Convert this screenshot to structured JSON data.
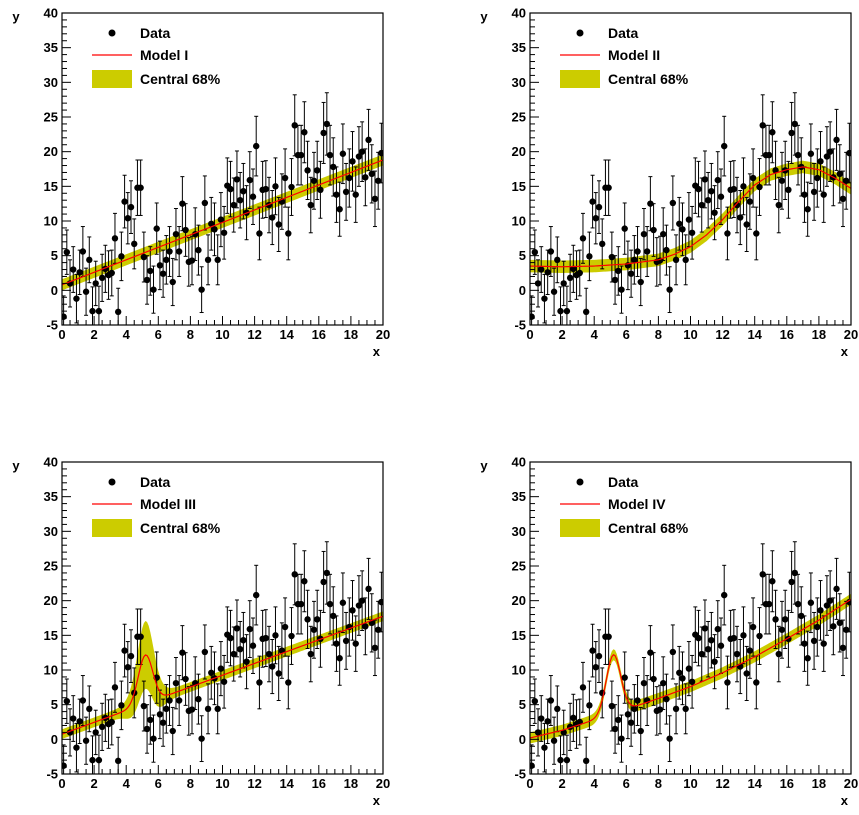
{
  "colors": {
    "data": "#000000",
    "model": "#ff0000",
    "band": "#cccc00",
    "frame": "#000000"
  },
  "data_points": {
    "x": [
      0.1,
      0.3,
      0.5,
      0.7,
      0.9,
      1.1,
      1.3,
      1.5,
      1.7,
      1.9,
      2.1,
      2.3,
      2.5,
      2.7,
      2.9,
      3.1,
      3.3,
      3.5,
      3.7,
      3.9,
      4.1,
      4.3,
      4.5,
      4.7,
      4.9,
      5.1,
      5.3,
      5.5,
      5.7,
      5.9,
      6.1,
      6.3,
      6.5,
      6.7,
      6.9,
      7.1,
      7.3,
      7.5,
      7.7,
      7.9,
      8.1,
      8.3,
      8.5,
      8.7,
      8.9,
      9.1,
      9.3,
      9.5,
      9.7,
      9.9,
      10.1,
      10.3,
      10.5,
      10.7,
      10.9,
      11.1,
      11.3,
      11.5,
      11.7,
      11.9,
      12.1,
      12.3,
      12.5,
      12.7,
      12.9,
      13.1,
      13.3,
      13.5,
      13.7,
      13.9,
      14.1,
      14.3,
      14.5,
      14.7,
      14.9,
      15.1,
      15.3,
      15.5,
      15.7,
      15.9,
      16.1,
      16.3,
      16.5,
      16.7,
      16.9,
      17.1,
      17.3,
      17.5,
      17.7,
      17.9,
      18.1,
      18.3,
      18.5,
      18.7,
      18.9,
      19.1,
      19.3,
      19.5,
      19.7,
      19.9
    ],
    "y": [
      -3.8,
      5.5,
      1.0,
      3.0,
      -1.2,
      2.6,
      5.6,
      -0.2,
      4.4,
      -3.0,
      1.0,
      -3.0,
      1.8,
      3.1,
      2.2,
      2.5,
      7.5,
      -3.1,
      4.9,
      12.8,
      10.4,
      12.0,
      6.7,
      14.8,
      14.8,
      4.8,
      1.5,
      2.8,
      0.1,
      8.9,
      3.6,
      2.4,
      4.4,
      5.6,
      1.2,
      8.1,
      5.6,
      12.5,
      8.7,
      4.1,
      4.3,
      8.1,
      5.8,
      0.1,
      12.6,
      4.4,
      9.6,
      8.8,
      4.4,
      10.2,
      8.3,
      15.1,
      14.6,
      12.3,
      16.0,
      13.0,
      14.3,
      11.2,
      15.9,
      13.5,
      20.8,
      8.2,
      14.5,
      14.6,
      12.3,
      10.5,
      15.0,
      9.5,
      12.8,
      16.2,
      8.2,
      14.9,
      23.8,
      19.5,
      19.5,
      22.8,
      17.3,
      12.3,
      15.8,
      17.3,
      14.5,
      22.7,
      24.0,
      19.5,
      17.8,
      13.8,
      11.7,
      19.7,
      14.2,
      16.2,
      18.6,
      13.8,
      19.3,
      20.0,
      16.3,
      21.7,
      16.8,
      13.2,
      15.8,
      19.8
    ],
    "err": [
      3.0,
      3.2,
      3.4,
      3.3,
      3.5,
      3.2,
      3.6,
      3.4,
      3.3,
      3.5,
      3.2,
      3.6,
      3.4,
      3.4,
      3.5,
      3.3,
      3.6,
      3.4,
      3.5,
      3.8,
      3.7,
      3.8,
      3.6,
      4.0,
      4.0,
      3.6,
      3.5,
      3.5,
      3.4,
      3.7,
      3.5,
      3.4,
      3.5,
      3.6,
      3.4,
      3.7,
      3.6,
      3.9,
      3.8,
      3.5,
      3.5,
      3.8,
      3.6,
      3.3,
      3.9,
      3.6,
      3.8,
      3.8,
      3.6,
      3.9,
      3.8,
      4.0,
      4.0,
      3.9,
      4.1,
      4.0,
      4.0,
      3.9,
      4.1,
      4.0,
      4.3,
      3.8,
      4.1,
      4.1,
      4.0,
      3.9,
      4.1,
      3.9,
      4.0,
      4.2,
      3.8,
      4.1,
      4.4,
      4.3,
      4.3,
      4.4,
      4.2,
      4.0,
      4.1,
      4.2,
      4.1,
      4.4,
      4.5,
      4.3,
      4.2,
      4.0,
      3.9,
      4.3,
      4.1,
      4.2,
      4.3,
      4.0,
      4.3,
      4.3,
      4.1,
      4.4,
      4.2,
      4.0,
      4.1,
      4.3
    ]
  },
  "chart_data": [
    {
      "type": "line",
      "id": "model-i",
      "xlabel": "x",
      "ylabel": "y",
      "xlim": [
        0,
        20
      ],
      "ylim": [
        -5,
        40
      ],
      "xticks": [
        "0",
        "2",
        "4",
        "6",
        "8",
        "10",
        "12",
        "14",
        "16",
        "18",
        "20"
      ],
      "yticks": [
        "-5",
        "0",
        "5",
        "10",
        "15",
        "20",
        "25",
        "30",
        "35",
        "40"
      ],
      "legend_position": "top-left",
      "legend": [
        "Data",
        "Model I",
        "Central 68%"
      ],
      "model": {
        "kind": "linear",
        "a": 0.8,
        "b": 0.9,
        "band_halfwidth": 0.8
      }
    },
    {
      "type": "line",
      "id": "model-ii",
      "xlabel": "x",
      "ylabel": "y",
      "xlim": [
        0,
        20
      ],
      "ylim": [
        -5,
        40
      ],
      "xticks": [
        "0",
        "2",
        "4",
        "6",
        "8",
        "10",
        "12",
        "14",
        "16",
        "18",
        "20"
      ],
      "yticks": [
        "-5",
        "0",
        "5",
        "10",
        "15",
        "20",
        "25",
        "30",
        "35",
        "40"
      ],
      "legend_position": "top-left",
      "legend": [
        "Data",
        "Model II",
        "Central 68%"
      ],
      "model": {
        "kind": "curve",
        "points": [
          [
            0,
            3.5
          ],
          [
            2,
            3.4
          ],
          [
            4,
            3.5
          ],
          [
            6,
            3.8
          ],
          [
            8,
            4.4
          ],
          [
            9,
            5.2
          ],
          [
            10,
            6.3
          ],
          [
            11,
            8.0
          ],
          [
            12,
            10.2
          ],
          [
            13,
            12.8
          ],
          [
            14,
            15.2
          ],
          [
            15,
            16.7
          ],
          [
            16,
            17.4
          ],
          [
            17,
            17.8
          ],
          [
            18,
            17.4
          ],
          [
            19,
            16.2
          ],
          [
            20,
            14.7
          ]
        ],
        "band_halfwidth": 0.9
      }
    },
    {
      "type": "line",
      "id": "model-iii",
      "xlabel": "x",
      "ylabel": "y",
      "xlim": [
        0,
        20
      ],
      "ylim": [
        -5,
        40
      ],
      "xticks": [
        "0",
        "2",
        "4",
        "6",
        "8",
        "10",
        "12",
        "14",
        "16",
        "18",
        "20"
      ],
      "yticks": [
        "-5",
        "0",
        "5",
        "10",
        "15",
        "20",
        "25",
        "30",
        "35",
        "40"
      ],
      "legend_position": "top-left",
      "legend": [
        "Data",
        "Model III",
        "Central 68%"
      ],
      "model": {
        "kind": "linear_peak",
        "a": 0.75,
        "b": 0.85,
        "peak_center": 5.2,
        "peak_height": 7.0,
        "peak_width": 0.45,
        "band_halfwidth": 0.7,
        "band_peak_factor": 6.0
      }
    },
    {
      "type": "line",
      "id": "model-iv",
      "xlabel": "x",
      "ylabel": "y",
      "xlim": [
        0,
        20
      ],
      "ylim": [
        -5,
        40
      ],
      "xticks": [
        "0",
        "2",
        "4",
        "6",
        "8",
        "10",
        "12",
        "14",
        "16",
        "18",
        "20"
      ],
      "yticks": [
        "-5",
        "0",
        "5",
        "10",
        "15",
        "20",
        "25",
        "30",
        "35",
        "40"
      ],
      "legend_position": "top-left",
      "legend": [
        "Data",
        "Model IV",
        "Central 68%"
      ],
      "model": {
        "kind": "curve_peak",
        "points": [
          [
            0,
            0.2
          ],
          [
            2,
            1.3
          ],
          [
            4,
            2.8
          ],
          [
            6,
            4.3
          ],
          [
            8,
            5.9
          ],
          [
            10,
            7.6
          ],
          [
            12,
            9.6
          ],
          [
            14,
            11.9
          ],
          [
            16,
            14.5
          ],
          [
            18,
            17.2
          ],
          [
            20,
            20.2
          ]
        ],
        "peak_center": 5.2,
        "peak_height": 8.5,
        "peak_width": 0.45,
        "band_halfwidth": 0.8
      }
    }
  ]
}
